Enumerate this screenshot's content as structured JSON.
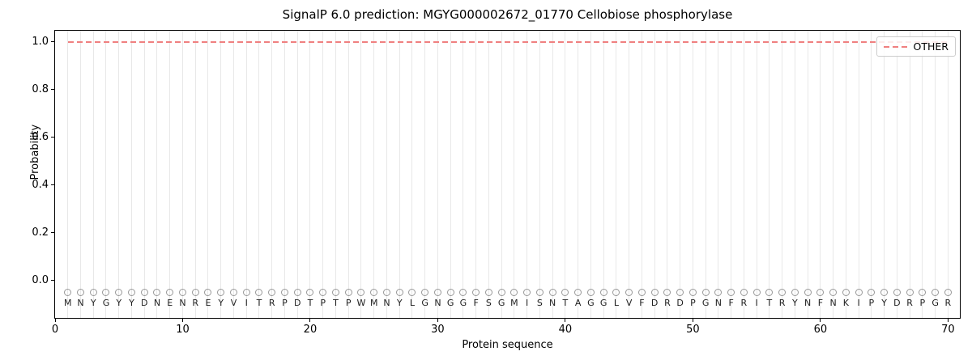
{
  "chart_data": {
    "type": "line",
    "title": "SignalP 6.0 prediction: MGYG000002672_01770 Cellobiose phosphorylase",
    "xlabel": "Protein sequence",
    "ylabel": "Probability",
    "xlim": [
      0,
      70.93
    ],
    "ylim": [
      -0.156,
      1.047
    ],
    "x_ticks": [
      0,
      10,
      20,
      30,
      40,
      50,
      60,
      70
    ],
    "y_ticks": [
      "0.0",
      "0.2",
      "0.4",
      "0.6",
      "0.8",
      "1.0"
    ],
    "grid": {
      "vertical": "one line per residue position 1-70",
      "horizontal": false,
      "color": "#e8e8e8"
    },
    "series": [
      {
        "name": "OTHER",
        "linestyle": "dashed",
        "color": "#f08080",
        "x_start": 1,
        "x_end": 70,
        "y_constant": 1.0
      }
    ],
    "sequence_track": {
      "marker": "o",
      "marker_y": -0.05,
      "marker_color": "#999999",
      "letter_color": "#1f1f1f",
      "start_position": 1,
      "residues": [
        "M",
        "N",
        "Y",
        "G",
        "Y",
        "Y",
        "D",
        "N",
        "E",
        "N",
        "R",
        "E",
        "Y",
        "V",
        "I",
        "T",
        "R",
        "P",
        "D",
        "T",
        "P",
        "T",
        "P",
        "W",
        "M",
        "N",
        "Y",
        "L",
        "G",
        "N",
        "G",
        "G",
        "F",
        "S",
        "G",
        "M",
        "I",
        "S",
        "N",
        "T",
        "A",
        "G",
        "G",
        "L",
        "V",
        "F",
        "D",
        "R",
        "D",
        "P",
        "G",
        "N",
        "F",
        "R",
        "I",
        "T",
        "R",
        "Y",
        "N",
        "F",
        "N",
        "K",
        "I",
        "P",
        "Y",
        "D",
        "R",
        "P",
        "G",
        "R"
      ]
    },
    "legend": {
      "position": "upper right",
      "entries": [
        {
          "label": "OTHER",
          "color": "#f08080",
          "linestyle": "dashed"
        }
      ]
    }
  },
  "colors": {
    "background": "#ffffff",
    "spine": "#000000",
    "grid": "#e8e8e8",
    "other_line": "#f08080"
  }
}
